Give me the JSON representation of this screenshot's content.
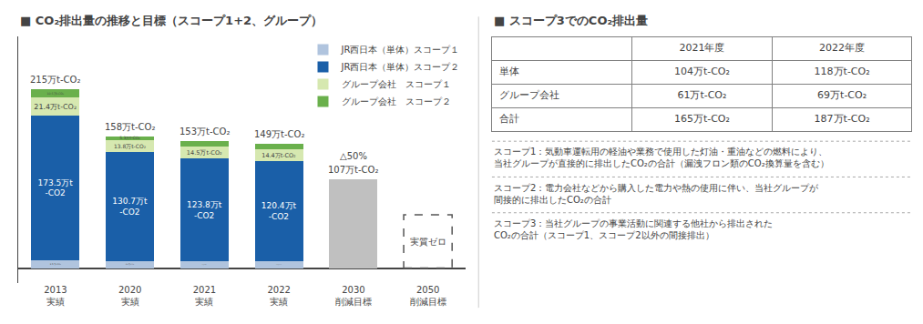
{
  "chart_data": [
    {
      "type": "bar",
      "title": "■ CO₂排出量の推移と目標（スコープ1+2、グループ）",
      "stacked": true,
      "data_labels": true,
      "categories": [
        "2013\n実績",
        "2020\n実績",
        "2021\n実績",
        "2022\n実績",
        "2030\n削減目標",
        "2050\n削減目標"
      ],
      "series": [
        {
          "name": "JR西日本（単体）スコープ１",
          "color": "#b0c4de",
          "values": [
            9.5,
            8.6,
            7.7,
            8.0,
            null,
            null
          ],
          "value_labels": [
            "9.5万t-CO₂",
            "8.6万t-CO₂",
            "7.7万t-CO₂",
            "8.0万t-CO₂",
            null,
            null
          ]
        },
        {
          "name": "JR西日本（単体）スコープ２",
          "color": "#1a5fa8",
          "values": [
            173.5,
            130.7,
            123.8,
            120.4,
            null,
            null
          ],
          "value_labels": [
            "173.5万t\n-CO2",
            "130.7万t\n-CO2",
            "123.8万t\n-CO2",
            "120.4万t\n-CO2",
            null,
            null
          ]
        },
        {
          "name": "グループ会社　スコープ１",
          "color": "#d6e8b0",
          "values": [
            21.4,
            13.8,
            14.5,
            14.4,
            null,
            null
          ],
          "value_labels": [
            "21.4万t-CO₂",
            "13.8万t-CO₂",
            "14.5万t-CO₂",
            "14.4万t-CO₂",
            null,
            null
          ]
        },
        {
          "name": "グループ会社　スコープ２",
          "color": "#6ab04c",
          "values": [
            10.5,
            5.3,
            6.9,
            6.6,
            null,
            null
          ],
          "value_labels": [
            "10.5万t-CO₂",
            "5.3万t-CO₂",
            "6.9万t-CO₂",
            "6.6万t-CO₂",
            null,
            null
          ]
        },
        {
          "color": "#c0c0c0",
          "values": [
            null,
            null,
            null,
            null,
            107,
            null
          ]
        },
        {
          "color": "#555555",
          "line_style": "dashed",
          "values": [
            null,
            null,
            null,
            null,
            null,
            64
          ]
        }
      ],
      "annotations": [
        {
          "text": "215万t-CO₂",
          "category": "2013\n実績"
        },
        {
          "text": "158万t-CO₂",
          "category": "2020\n実績"
        },
        {
          "text": "153万t-CO₂",
          "category": "2021\n実績"
        },
        {
          "text": "149万t-CO₂",
          "category": "2022\n実績"
        },
        {
          "text": "△50%",
          "category": "2030\n削減目標"
        },
        {
          "text": "107万t-CO₂",
          "category": "2030\n削減目標"
        },
        {
          "text": "実質ゼロ",
          "category": "2050\n削減目標"
        }
      ],
      "ylim": [
        -18,
        278
      ],
      "grid": false,
      "legend": "upper right",
      "tick_labels": "x"
    },
    {
      "type": "table",
      "title": "■ スコープ3でのCO₂排出量",
      "headers": [
        null,
        "2021年度",
        "2022年度"
      ],
      "rows": [
        [
          "単体",
          "104万t-CO₂",
          "118万t-CO₂"
        ],
        [
          "グループ会社",
          "61万t-CO₂",
          "69万t-CO₂"
        ],
        [
          "合計",
          "165万t-CO₂",
          "187万t-CO₂"
        ]
      ],
      "annotations": [
        "スコープ1：気動車運転用の軽油や業務で使用した灯油・重油などの燃料により、\n当社グループが直接的に排出したCO₂の合計（漏洩フロン類のCO₂換算量を含む）",
        "スコープ2：電力会社などから購入した電力や熱の使用に伴い、当社グループが\n間接的に排出したCO₂の合計",
        "スコープ3：当社グループの事業活動に関連する他社から排出された\nCO₂の合計（スコープ1、スコープ2以外の間接排出）"
      ]
    }
  ]
}
